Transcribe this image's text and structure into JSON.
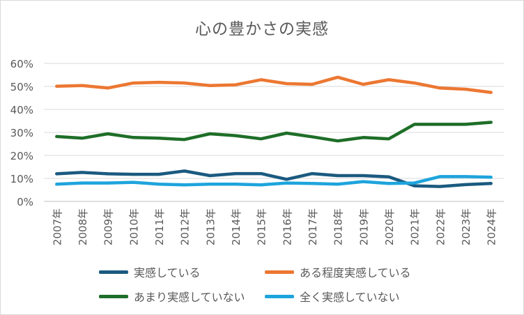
{
  "chart_data": {
    "type": "line",
    "title": "心の豊かさの実感",
    "categories": [
      "2007年",
      "2008年",
      "2009年",
      "2010年",
      "2011年",
      "2012年",
      "2013年",
      "2014年",
      "2015年",
      "2016年",
      "2017年",
      "2018年",
      "2019年",
      "2020年",
      "2021年",
      "2022年",
      "2023年",
      "2024年"
    ],
    "ylim": [
      0,
      60
    ],
    "yticks": [
      "0%",
      "10%",
      "20%",
      "30%",
      "40%",
      "50%",
      "60%"
    ],
    "grid": true,
    "legend_position": "bottom",
    "series": [
      {
        "name": "実感している",
        "color": "#1b5a80",
        "values": [
          12,
          12.6,
          12,
          11.8,
          11.8,
          13.2,
          11.2,
          12.1,
          12.1,
          9.6,
          12.1,
          11.2,
          11.2,
          10.7,
          6.8,
          6.5,
          7.3,
          7.8
        ]
      },
      {
        "name": "ある程度実感している",
        "color": "#ec7732",
        "values": [
          50.1,
          50.4,
          49.3,
          51.5,
          51.8,
          51.5,
          50.4,
          50.7,
          52.9,
          51.2,
          50.9,
          54,
          50.9,
          52.9,
          51.5,
          49.3,
          48.8,
          47.4
        ]
      },
      {
        "name": "あまり実感していない",
        "color": "#1e6e28",
        "values": [
          28.2,
          27.5,
          29.4,
          27.8,
          27.5,
          26.9,
          29.4,
          28.6,
          27.2,
          29.7,
          28.1,
          26.3,
          27.8,
          27.2,
          33.5,
          33.5,
          33.5,
          34.4
        ]
      },
      {
        "name": "全く実感していない",
        "color": "#1ea4dc",
        "values": [
          7.5,
          8,
          8,
          8.3,
          7.5,
          7.2,
          7.5,
          7.5,
          7.2,
          8,
          7.8,
          7.5,
          8.6,
          7.8,
          8,
          10.8,
          10.8,
          10.5
        ]
      }
    ]
  }
}
